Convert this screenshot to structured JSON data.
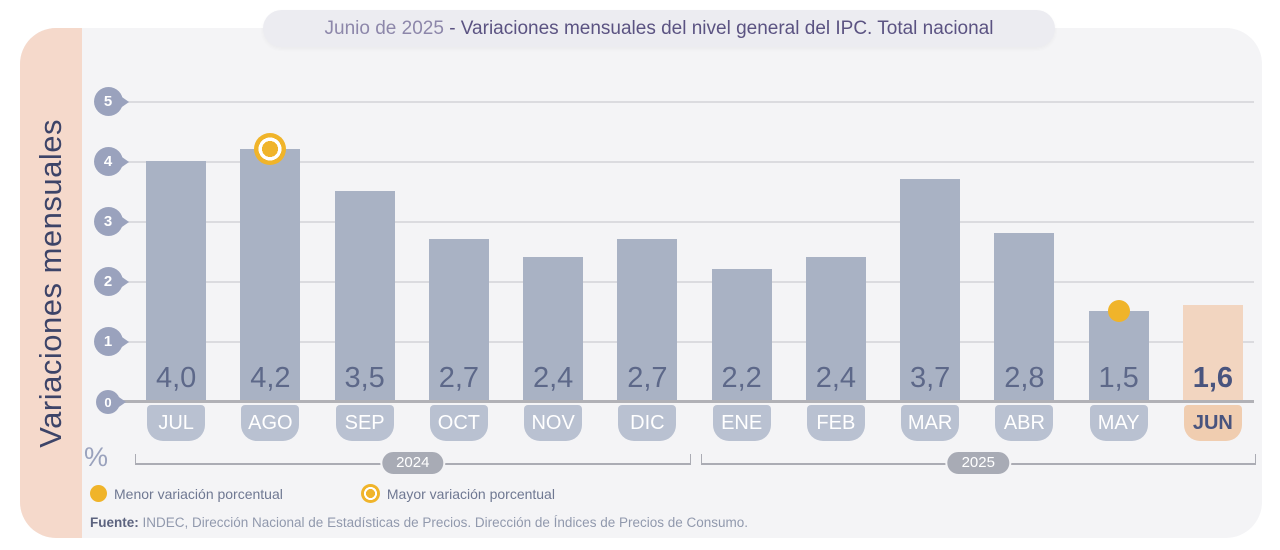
{
  "title": {
    "prefix": "Junio de 2025 ",
    "main": "- Variaciones mensuales del nivel general del IPC. Total nacional"
  },
  "y_axis_label": "Variaciones mensuales",
  "unit_label": "%",
  "chart_data": {
    "type": "bar",
    "categories": [
      "JUL",
      "AGO",
      "SEP",
      "OCT",
      "NOV",
      "DIC",
      "ENE",
      "FEB",
      "MAR",
      "ABR",
      "MAY",
      "JUN"
    ],
    "values": [
      4.0,
      4.2,
      3.5,
      2.7,
      2.4,
      2.7,
      2.2,
      2.4,
      3.7,
      2.8,
      1.5,
      1.6
    ],
    "value_labels": [
      "4,0",
      "4,2",
      "3,5",
      "2,7",
      "2,4",
      "2,7",
      "2,2",
      "2,4",
      "3,7",
      "2,8",
      "1,5",
      "1,6"
    ],
    "title": "Junio de 2025 - Variaciones mensuales del nivel general del IPC. Total nacional",
    "xlabel": "",
    "ylabel": "Variaciones mensuales",
    "ylim": [
      0,
      5
    ],
    "yticks": [
      "5",
      "4",
      "3",
      "2",
      "1",
      "0"
    ],
    "grid": true,
    "year_groups": [
      {
        "label": "2024",
        "start": 0,
        "end": 5
      },
      {
        "label": "2025",
        "start": 6,
        "end": 11
      }
    ],
    "highlight_index": 11,
    "max_marker_index": 1,
    "min_marker_index": 10
  },
  "legend": {
    "items": [
      {
        "icon": "solid-yellow-dot",
        "label": "Menor variación porcentual"
      },
      {
        "icon": "yellow-ring-dot",
        "label": "Mayor variación porcentual"
      }
    ]
  },
  "source": {
    "prefix": "Fuente:",
    "text": " INDEC, Dirección Nacional de Estadísticas de Precios. Dirección de Índices de Precios de Consumo."
  },
  "colors": {
    "card_bg": "#f4f4f6",
    "band": "#f5d9cb",
    "bar": "#a9b2c4",
    "bar_highlight": "#f2d5c0",
    "pill": "#b9c1d1",
    "pill_highlight": "#f0cdb0",
    "badge": "#9aa2bd",
    "gridline": "#dbdbdf",
    "axis_line": "#b1b1b6",
    "value_text": "#5d6889",
    "value_text_dark": "#49547e",
    "month_text": "#ffffff",
    "title_bg": "#ececf1",
    "title_prefix": "#8d87aa",
    "title_main": "#5b5382",
    "bracket": "#abacb4",
    "bracket_pill": "#a8abb5",
    "marker_yellow": "#f0b42a",
    "legend_text": "#6f7892",
    "source_text": "#9199ad",
    "source_prefix": "#5c637f",
    "side_label": "#3d4468"
  }
}
